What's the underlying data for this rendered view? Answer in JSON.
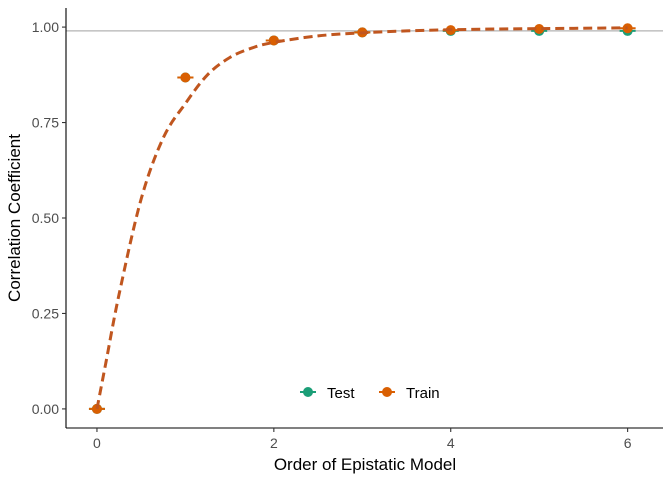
{
  "chart_data": {
    "type": "scatter",
    "xlabel": "Order of Epistatic Model",
    "ylabel": "Correlation Coefficient",
    "xlim": [
      -0.35,
      6.4
    ],
    "ylim": [
      -0.05,
      1.05
    ],
    "x_ticks": [
      "0",
      "2",
      "4",
      "6"
    ],
    "y_ticks": [
      "0.00",
      "0.25",
      "0.50",
      "0.75",
      "1.00"
    ],
    "reference_line": 0.99,
    "grid": false,
    "legend_position": "bottom-center",
    "series": [
      {
        "name": "Test",
        "color": "#1b9e77",
        "x": [
          0,
          1,
          2,
          3,
          4,
          5,
          6
        ],
        "y": [
          0.0,
          0.868,
          0.965,
          0.986,
          0.99,
          0.99,
          0.99
        ]
      },
      {
        "name": "Train",
        "color": "#d95f02",
        "x": [
          0,
          1,
          2,
          3,
          4,
          5,
          6
        ],
        "y": [
          0.0,
          0.868,
          0.965,
          0.986,
          0.992,
          0.995,
          0.997
        ]
      }
    ],
    "smooth_curve": {
      "color": "#c0561f",
      "style": "dashed",
      "x": [
        0,
        0.1,
        0.25,
        0.5,
        0.75,
        1.0,
        1.25,
        1.5,
        1.75,
        2.0,
        2.5,
        3.0,
        3.5,
        4.0,
        4.5,
        5.0,
        5.5,
        6.0
      ],
      "y": [
        0.0,
        0.12,
        0.3,
        0.55,
        0.71,
        0.8,
        0.875,
        0.92,
        0.945,
        0.96,
        0.977,
        0.985,
        0.99,
        0.993,
        0.995,
        0.996,
        0.997,
        0.998
      ]
    }
  }
}
